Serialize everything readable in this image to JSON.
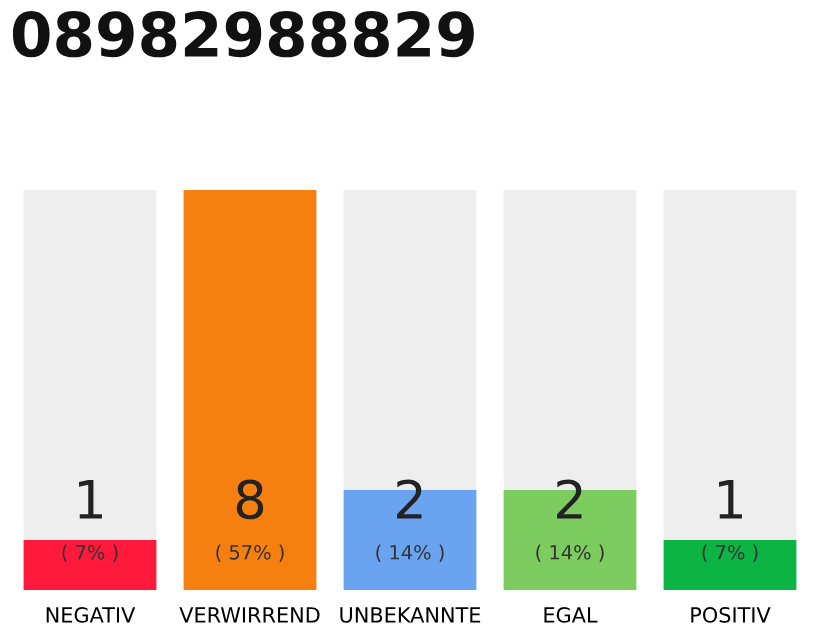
{
  "chart_data": {
    "type": "bar",
    "title": "08982988829",
    "stacked": true,
    "categories": [
      "NEGATIV",
      "VERWIRREND",
      "UNBEKANNTE",
      "EGAL",
      "POSITIV"
    ],
    "series": [
      {
        "colors": [
          "#ff1a3c",
          "#f57f0f",
          "#6aa3f0",
          "#7ccc60",
          "#0bb443"
        ],
        "values": [
          1,
          8,
          2,
          2,
          1
        ],
        "value_labels": [
          "1",
          "8",
          "2",
          "2",
          "1"
        ]
      },
      {
        "color": "#eeeeee",
        "values": [
          7,
          0,
          6,
          6,
          7
        ]
      }
    ],
    "annotations": [
      "( 7% )",
      "( 57% )",
      "( 14% )",
      "( 14% )",
      "( 7% )"
    ],
    "grid": false,
    "legend": false
  }
}
